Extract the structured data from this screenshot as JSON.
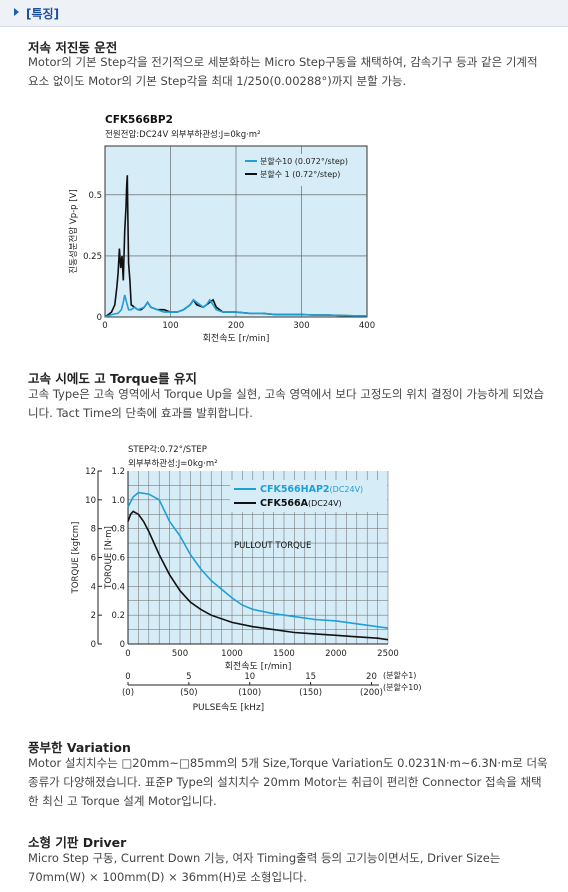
{
  "header": {
    "title": "[특징]"
  },
  "sections": [
    {
      "title": "저속 저진동 운전",
      "body": "Motor의 기본 Step각을 전기적으로 세분화하는 Micro Step구동을 채택하여, 감속기구 등과 같은 기계적 요소 없이도 Motor의 기본 Step각을 최대 1/250(0.00288°)까지 분할 가능."
    },
    {
      "title": "고속 시에도 고 Torque를 유지",
      "body": "고속 Type은 고속 영역에서 Torque Up을 실현, 고속 영역에서 보다 고정도의 위치 결정이 가능하게 되었습니다. Tact Time의 단축에 효과를 발휘합니다."
    },
    {
      "title": "풍부한 Variation",
      "body": "Motor 설치치수는 □20mm~□85mm의 5개 Size,Torque Variation도 0.0231N·m~6.3N·m로 더욱 종류가 다양해졌습니다. 표준P Type의 설치치수 20mm Motor는 취급이 편리한 Connector 접속을 채택한 최신 고 Torque 설계 Motor입니다."
    },
    {
      "title": "소형 기판 Driver",
      "body": "Micro Step 구동, Current Down 기능, 여자 Timing출력 등의 고기능이면서도, Driver Size는 70mm(W) × 100mm(D) × 36mm(H)로 소형입니다."
    }
  ],
  "chart_data": [
    {
      "type": "line",
      "title": "CFK566BP2",
      "subtitle": "전원전압:DC24V   외부부하관성:J=0kg·m²",
      "xlabel": "회전속도 [r/min]",
      "ylabel": "진동성분전압 Vp-p [V]",
      "xlim": [
        0,
        400
      ],
      "ylim": [
        0,
        0.7
      ],
      "xticks": [
        "0",
        "100",
        "200",
        "300",
        "400"
      ],
      "yticks": [
        "0",
        "0.25",
        "0.5"
      ],
      "grid": true,
      "legend_position": "top-right",
      "series": [
        {
          "name": "분할수10 (0.072°/step)",
          "color": "#1e9fd8",
          "x": [
            0,
            10,
            20,
            25,
            28,
            30,
            33,
            36,
            40,
            45,
            50,
            60,
            65,
            70,
            80,
            90,
            100,
            110,
            120,
            130,
            135,
            140,
            145,
            150,
            155,
            160,
            165,
            170,
            180,
            200,
            220,
            240,
            260,
            280,
            300,
            320,
            340,
            360,
            380,
            400
          ],
          "y": [
            0,
            0.01,
            0.015,
            0.03,
            0.06,
            0.09,
            0.06,
            0.03,
            0.03,
            0.04,
            0.03,
            0.04,
            0.06,
            0.04,
            0.03,
            0.02,
            0.02,
            0.02,
            0.03,
            0.05,
            0.07,
            0.06,
            0.05,
            0.04,
            0.05,
            0.07,
            0.05,
            0.03,
            0.02,
            0.02,
            0.015,
            0.015,
            0.01,
            0.01,
            0.01,
            0.008,
            0.008,
            0.006,
            0.005,
            0.005
          ]
        },
        {
          "name": "분할수 1 (0.72°/step)",
          "color": "#111111",
          "x": [
            0,
            5,
            10,
            15,
            18,
            20,
            22,
            24,
            26,
            28,
            30,
            32,
            33,
            34,
            35,
            36,
            38,
            40,
            45,
            50,
            55,
            60,
            65,
            70,
            80,
            90,
            100,
            110,
            120,
            130,
            135,
            140,
            150,
            160,
            165,
            170,
            180,
            200,
            220,
            240,
            260,
            280,
            300,
            320,
            340,
            360,
            380,
            400
          ],
          "y": [
            0,
            0.01,
            0.02,
            0.05,
            0.12,
            0.18,
            0.28,
            0.2,
            0.25,
            0.15,
            0.35,
            0.45,
            0.53,
            0.58,
            0.4,
            0.22,
            0.15,
            0.05,
            0.04,
            0.03,
            0.03,
            0.04,
            0.06,
            0.04,
            0.03,
            0.03,
            0.02,
            0.02,
            0.03,
            0.05,
            0.07,
            0.05,
            0.04,
            0.06,
            0.07,
            0.04,
            0.02,
            0.02,
            0.015,
            0.015,
            0.01,
            0.01,
            0.01,
            0.008,
            0.008,
            0.006,
            0.005,
            0.005
          ]
        }
      ]
    },
    {
      "type": "line",
      "title": "STEP각:0.72°/STEP",
      "subtitle": "외부부하관성:J=0kg·m²",
      "xlabel": "회전속도 [r/min]",
      "ylabel_left": "TORQUE [kgfcm]",
      "ylabel_right": "TORQUE [N·m]",
      "annotation": "PULLOUT TORQUE",
      "xlim": [
        0,
        2500
      ],
      "ylim_nm": [
        0,
        1.2
      ],
      "ylim_kgfcm": [
        0,
        12
      ],
      "xticks": [
        "0",
        "500",
        "1000",
        "1500",
        "2000",
        "2500"
      ],
      "yticks_nm": [
        "0",
        "0.2",
        "0.4",
        "0.6",
        "0.8",
        "1.0",
        "1.2"
      ],
      "yticks_kgfcm": [
        "0",
        "2",
        "4",
        "6",
        "8",
        "10",
        "12"
      ],
      "grid": true,
      "legend_position": "top-right",
      "pulse_axis": {
        "label": "PULSE속도 [kHz]",
        "ticks": [
          "0",
          "5",
          "10",
          "15",
          "20"
        ],
        "ticks_sub": [
          "(0)",
          "(50)",
          "(100)",
          "(150)",
          "(200)"
        ],
        "unit_top": "(분할수1)",
        "unit_bottom": "(분할수10)"
      },
      "series": [
        {
          "name": "CFK566HAP2",
          "suffix": "(DC24V)",
          "color": "#1e9fd8",
          "x": [
            0,
            50,
            100,
            200,
            300,
            400,
            500,
            600,
            700,
            800,
            900,
            1000,
            1100,
            1200,
            1400,
            1600,
            1800,
            2000,
            2200,
            2400,
            2500
          ],
          "y": [
            0.95,
            1.02,
            1.05,
            1.04,
            1.0,
            0.85,
            0.75,
            0.62,
            0.52,
            0.44,
            0.38,
            0.32,
            0.27,
            0.24,
            0.21,
            0.19,
            0.17,
            0.16,
            0.14,
            0.12,
            0.11
          ]
        },
        {
          "name": "CFK566A",
          "suffix": "(DC24V)",
          "color": "#111111",
          "x": [
            0,
            25,
            50,
            100,
            150,
            200,
            300,
            400,
            500,
            600,
            700,
            800,
            1000,
            1200,
            1400,
            1600,
            1800,
            2000,
            2200,
            2400,
            2500
          ],
          "y": [
            0.85,
            0.9,
            0.92,
            0.9,
            0.85,
            0.78,
            0.62,
            0.48,
            0.37,
            0.29,
            0.24,
            0.2,
            0.15,
            0.12,
            0.1,
            0.08,
            0.07,
            0.06,
            0.05,
            0.04,
            0.03
          ]
        }
      ]
    }
  ]
}
